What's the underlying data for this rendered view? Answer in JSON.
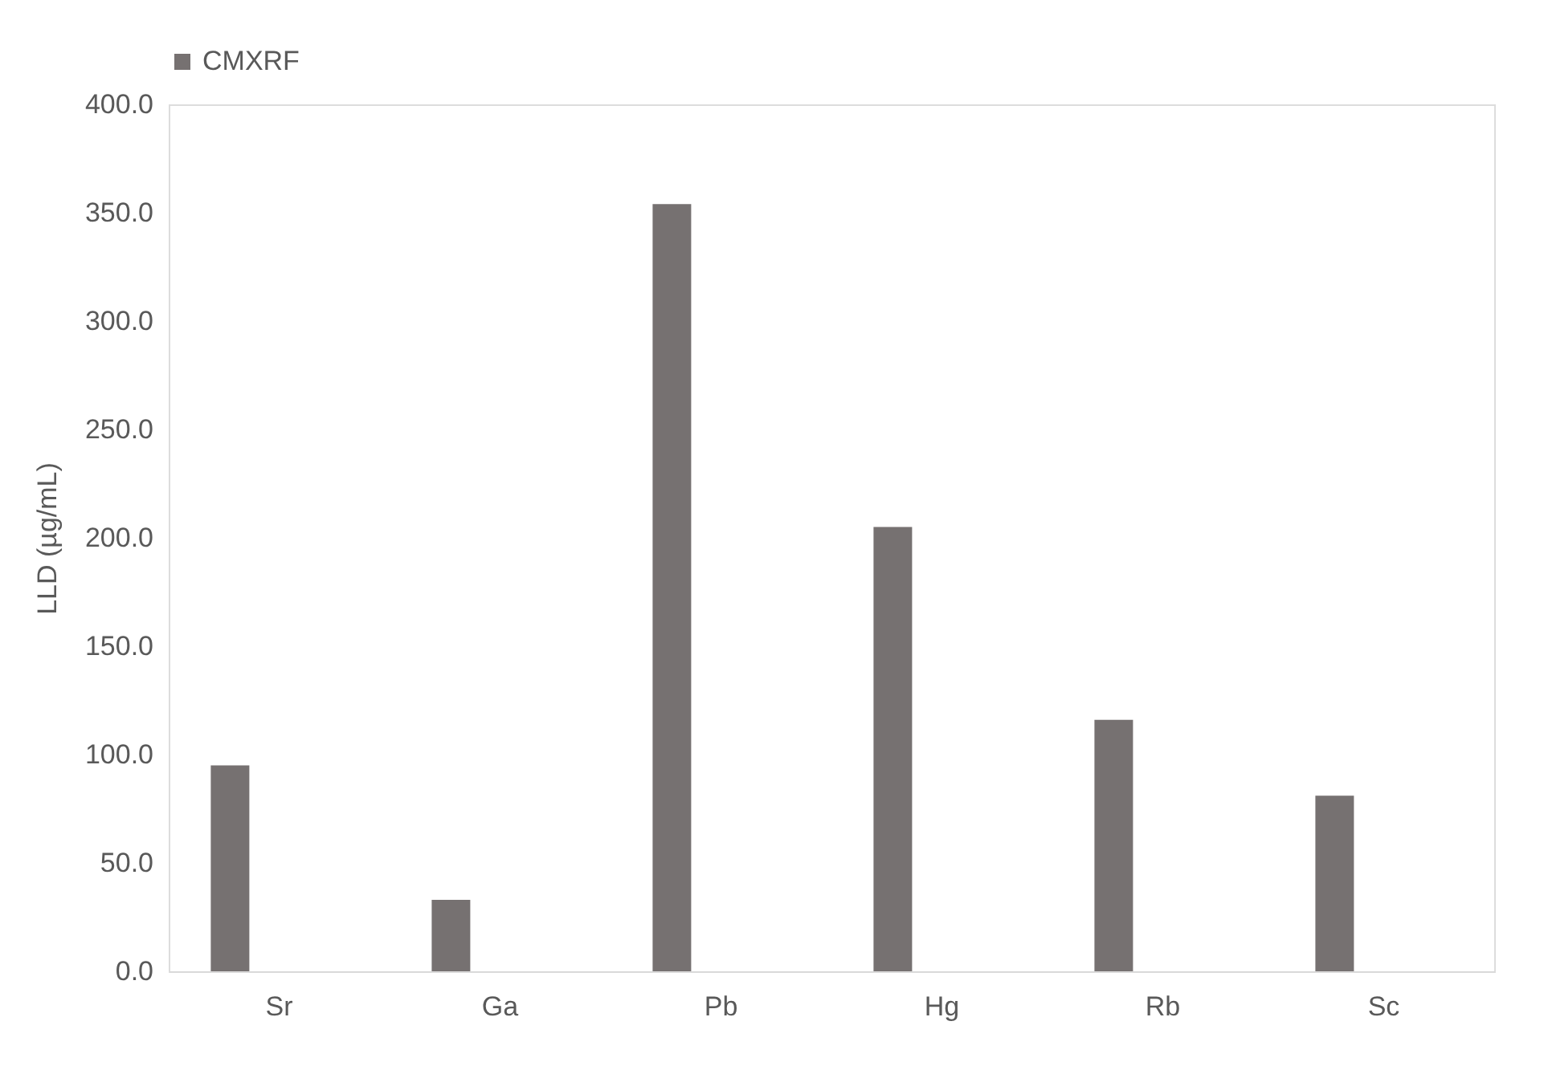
{
  "chart_data": {
    "type": "bar",
    "ylabel": "LLD (µg/mL)",
    "categories": [
      "Sr",
      "Ga",
      "Pb",
      "Hg",
      "Rb",
      "Sc"
    ],
    "series": [
      {
        "name": "CMXRF",
        "color": "#767171",
        "values": [
          95,
          33,
          354,
          205,
          116,
          81
        ]
      },
      {
        "color": "#c00000",
        "values": [
          0,
          0,
          0,
          0,
          0,
          0
        ]
      },
      {
        "color": "#ffc000",
        "values": [
          0,
          0,
          0,
          0,
          0,
          0
        ]
      }
    ],
    "ylim": [
      0,
      400
    ],
    "yticks": [
      {
        "value": 0,
        "label": "0.0"
      },
      {
        "value": 50,
        "label": "50.0"
      },
      {
        "value": 100,
        "label": "100.0"
      },
      {
        "value": 150,
        "label": "150.0"
      },
      {
        "value": 200,
        "label": "200.0"
      },
      {
        "value": 250,
        "label": "250.0"
      },
      {
        "value": 300,
        "label": "300.0"
      },
      {
        "value": 350,
        "label": "350.0"
      },
      {
        "value": 400,
        "label": "400.0"
      }
    ],
    "grid": false,
    "legend": "top"
  }
}
